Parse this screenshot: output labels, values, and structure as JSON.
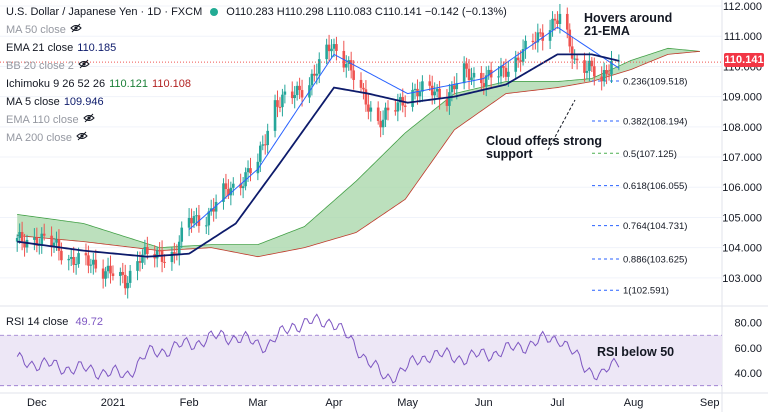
{
  "header": {
    "symbol": "U.S. Dollar / Japanese Yen · 1D · FXCM",
    "ohlc": "O110.283 H110.298 L110.083 C110.141 −0.142 (−0.13%)"
  },
  "indicators": [
    {
      "label": "MA 50 close",
      "value": "",
      "muted": true
    },
    {
      "label": "EMA 21 close",
      "value": "110.185",
      "muted": false,
      "value_color": "blue"
    },
    {
      "label": "BB 20 close 2",
      "value": "",
      "muted": true
    },
    {
      "label": "Ichimoku 9 26 52 26",
      "value": "110.121",
      "value2": "110.108",
      "muted": false
    },
    {
      "label": "MA 5 close",
      "value": "109.946",
      "muted": false,
      "value_color": "blue"
    },
    {
      "label": "EMA 110 close",
      "value": "",
      "muted": true
    },
    {
      "label": "MA 200 close",
      "value": "",
      "muted": true
    }
  ],
  "rsi": {
    "label": "RSI 14 close",
    "value": "49.72"
  },
  "annotations": {
    "hover": "Hovers around\n21-EMA",
    "cloud": "Cloud offers strong\nsupport",
    "rsi": "RSI below 50"
  },
  "price_axis": {
    "ticks": [
      "112.000",
      "111.000",
      "110.000",
      "109.000",
      "108.000",
      "107.000",
      "106.000",
      "105.000",
      "104.000",
      "103.000"
    ],
    "current": "110.141"
  },
  "rsi_axis": {
    "ticks": [
      "80.00",
      "60.00",
      "40.00"
    ]
  },
  "time_axis": {
    "ticks": [
      "Dec",
      "2021",
      "Feb",
      "Mar",
      "Apr",
      "May",
      "Jun",
      "Jul",
      "Aug",
      "Sep"
    ]
  },
  "fib_levels": [
    {
      "label": "0.236(109.518)"
    },
    {
      "label": "0.382(108.194)"
    },
    {
      "label": "0.5(107.125)"
    },
    {
      "label": "0.618(106.055)"
    },
    {
      "label": "0.764(104.731)"
    },
    {
      "label": "0.886(103.625)"
    },
    {
      "label": "1(102.591)"
    }
  ],
  "colors": {
    "up": "#26a69a",
    "down": "#ef5350",
    "ema21": "#0d1b6b",
    "ma5": "#2962ff",
    "cloud_bull": "#a5d6a7",
    "cloud_bear": "#ef5350",
    "rsi_line": "#7e57c2",
    "rsi_band": "#ede7f6",
    "fib": "#2962ff",
    "fib_mid": "#4caf50",
    "price_badge": "#f23645"
  },
  "chart_data": {
    "type": "candlestick",
    "title": "U.S. Dollar / Japanese Yen · 1D · FXCM",
    "ylim": [
      102.2,
      112.2
    ],
    "series": [
      {
        "name": "U.S. Dollar / Japanese Yen",
        "anchors": [
          {
            "date": "2020-11-23",
            "close": 104.2
          },
          {
            "date": "2020-12-01",
            "close": 104.3
          },
          {
            "date": "2020-12-08",
            "close": 104.1
          },
          {
            "date": "2020-12-15",
            "close": 103.6
          },
          {
            "date": "2020-12-22",
            "close": 103.5
          },
          {
            "date": "2020-12-31",
            "close": 103.2
          },
          {
            "date": "2021-01-06",
            "close": 102.8
          },
          {
            "date": "2021-01-12",
            "close": 103.8
          },
          {
            "date": "2021-01-19",
            "close": 103.7
          },
          {
            "date": "2021-01-26",
            "close": 103.8
          },
          {
            "date": "2021-02-01",
            "close": 104.9
          },
          {
            "date": "2021-02-08",
            "close": 105.0
          },
          {
            "date": "2021-02-15",
            "close": 105.8
          },
          {
            "date": "2021-02-22",
            "close": 106.2
          },
          {
            "date": "2021-03-01",
            "close": 106.8
          },
          {
            "date": "2021-03-08",
            "close": 108.8
          },
          {
            "date": "2021-03-15",
            "close": 109.0
          },
          {
            "date": "2021-03-22",
            "close": 109.5
          },
          {
            "date": "2021-03-31",
            "close": 110.7
          },
          {
            "date": "2021-04-06",
            "close": 110.2
          },
          {
            "date": "2021-04-12",
            "close": 109.1
          },
          {
            "date": "2021-04-19",
            "close": 108.2
          },
          {
            "date": "2021-04-26",
            "close": 108.6
          },
          {
            "date": "2021-05-03",
            "close": 109.2
          },
          {
            "date": "2021-05-10",
            "close": 109.2
          },
          {
            "date": "2021-05-17",
            "close": 109.0
          },
          {
            "date": "2021-05-24",
            "close": 109.8
          },
          {
            "date": "2021-05-31",
            "close": 109.6
          },
          {
            "date": "2021-06-07",
            "close": 109.7
          },
          {
            "date": "2021-06-14",
            "close": 110.2
          },
          {
            "date": "2021-06-21",
            "close": 110.8
          },
          {
            "date": "2021-06-28",
            "close": 111.4
          },
          {
            "date": "2021-07-02",
            "close": 111.6
          },
          {
            "date": "2021-07-08",
            "close": 110.2
          },
          {
            "date": "2021-07-14",
            "close": 110.0
          },
          {
            "date": "2021-07-19",
            "close": 109.4
          },
          {
            "date": "2021-07-23",
            "close": 110.2
          },
          {
            "date": "2021-07-26",
            "close": 110.14
          }
        ]
      },
      {
        "name": "EMA 21 close",
        "anchors": [
          {
            "date": "2020-11-23",
            "value": 104.2
          },
          {
            "date": "2020-12-20",
            "value": 103.9
          },
          {
            "date": "2021-01-15",
            "value": 103.7
          },
          {
            "date": "2021-02-01",
            "value": 103.8
          },
          {
            "date": "2021-02-20",
            "value": 104.8
          },
          {
            "date": "2021-03-10",
            "value": 106.8
          },
          {
            "date": "2021-04-01",
            "value": 109.3
          },
          {
            "date": "2021-04-15",
            "value": 109.1
          },
          {
            "date": "2021-05-01",
            "value": 108.8
          },
          {
            "date": "2021-05-20",
            "value": 109.0
          },
          {
            "date": "2021-06-10",
            "value": 109.4
          },
          {
            "date": "2021-07-01",
            "value": 110.4
          },
          {
            "date": "2021-07-15",
            "value": 110.4
          },
          {
            "date": "2021-07-26",
            "value": 110.185
          }
        ]
      },
      {
        "name": "MA 5 close",
        "anchors": [
          {
            "date": "2021-02-01",
            "value": 104.6
          },
          {
            "date": "2021-03-01",
            "value": 106.6
          },
          {
            "date": "2021-04-01",
            "value": 110.4
          },
          {
            "date": "2021-05-01",
            "value": 109.1
          },
          {
            "date": "2021-06-01",
            "value": 109.6
          },
          {
            "date": "2021-07-01",
            "value": 111.3
          },
          {
            "date": "2021-07-26",
            "value": 109.946
          }
        ]
      },
      {
        "name": "Ichimoku cloud span A",
        "anchors": [
          {
            "date": "2020-11-23",
            "value": 105.1
          },
          {
            "date": "2020-12-20",
            "value": 104.8
          },
          {
            "date": "2021-01-20",
            "value": 104.0
          },
          {
            "date": "2021-02-10",
            "value": 104.1
          },
          {
            "date": "2021-03-01",
            "value": 104.1
          },
          {
            "date": "2021-03-20",
            "value": 104.7
          },
          {
            "date": "2021-04-10",
            "value": 106.2
          },
          {
            "date": "2021-04-30",
            "value": 107.8
          },
          {
            "date": "2021-05-20",
            "value": 109.1
          },
          {
            "date": "2021-06-10",
            "value": 109.5
          },
          {
            "date": "2021-07-01",
            "value": 109.5
          },
          {
            "date": "2021-07-15",
            "value": 109.6
          },
          {
            "date": "2021-07-31",
            "value": 110.2
          },
          {
            "date": "2021-08-15",
            "value": 110.6
          },
          {
            "date": "2021-08-28",
            "value": 110.5
          }
        ]
      },
      {
        "name": "Ichimoku cloud span B",
        "anchors": [
          {
            "date": "2020-11-23",
            "value": 104.4
          },
          {
            "date": "2020-12-20",
            "value": 104.2
          },
          {
            "date": "2021-01-20",
            "value": 103.9
          },
          {
            "date": "2021-02-10",
            "value": 104.0
          },
          {
            "date": "2021-03-01",
            "value": 103.7
          },
          {
            "date": "2021-03-20",
            "value": 104.0
          },
          {
            "date": "2021-04-10",
            "value": 104.5
          },
          {
            "date": "2021-04-30",
            "value": 105.6
          },
          {
            "date": "2021-05-20",
            "value": 107.9
          },
          {
            "date": "2021-06-10",
            "value": 109.1
          },
          {
            "date": "2021-07-01",
            "value": 109.3
          },
          {
            "date": "2021-07-15",
            "value": 109.5
          },
          {
            "date": "2021-07-31",
            "value": 109.9
          },
          {
            "date": "2021-08-15",
            "value": 110.4
          },
          {
            "date": "2021-08-28",
            "value": 110.5
          }
        ]
      },
      {
        "name": "RSI 14 close",
        "anchors": [
          {
            "date": "2020-11-23",
            "value": 50
          },
          {
            "date": "2020-12-10",
            "value": 45
          },
          {
            "date": "2020-12-25",
            "value": 42
          },
          {
            "date": "2021-01-06",
            "value": 38
          },
          {
            "date": "2021-01-15",
            "value": 55
          },
          {
            "date": "2021-02-01",
            "value": 63
          },
          {
            "date": "2021-02-15",
            "value": 70
          },
          {
            "date": "2021-03-05",
            "value": 62
          },
          {
            "date": "2021-03-15",
            "value": 78
          },
          {
            "date": "2021-03-31",
            "value": 82
          },
          {
            "date": "2021-04-15",
            "value": 50
          },
          {
            "date": "2021-04-22",
            "value": 35
          },
          {
            "date": "2021-05-10",
            "value": 55
          },
          {
            "date": "2021-05-25",
            "value": 52
          },
          {
            "date": "2021-06-10",
            "value": 58
          },
          {
            "date": "2021-06-25",
            "value": 66
          },
          {
            "date": "2021-07-02",
            "value": 68
          },
          {
            "date": "2021-07-12",
            "value": 45
          },
          {
            "date": "2021-07-19",
            "value": 38
          },
          {
            "date": "2021-07-26",
            "value": 49.72
          }
        ]
      }
    ]
  }
}
